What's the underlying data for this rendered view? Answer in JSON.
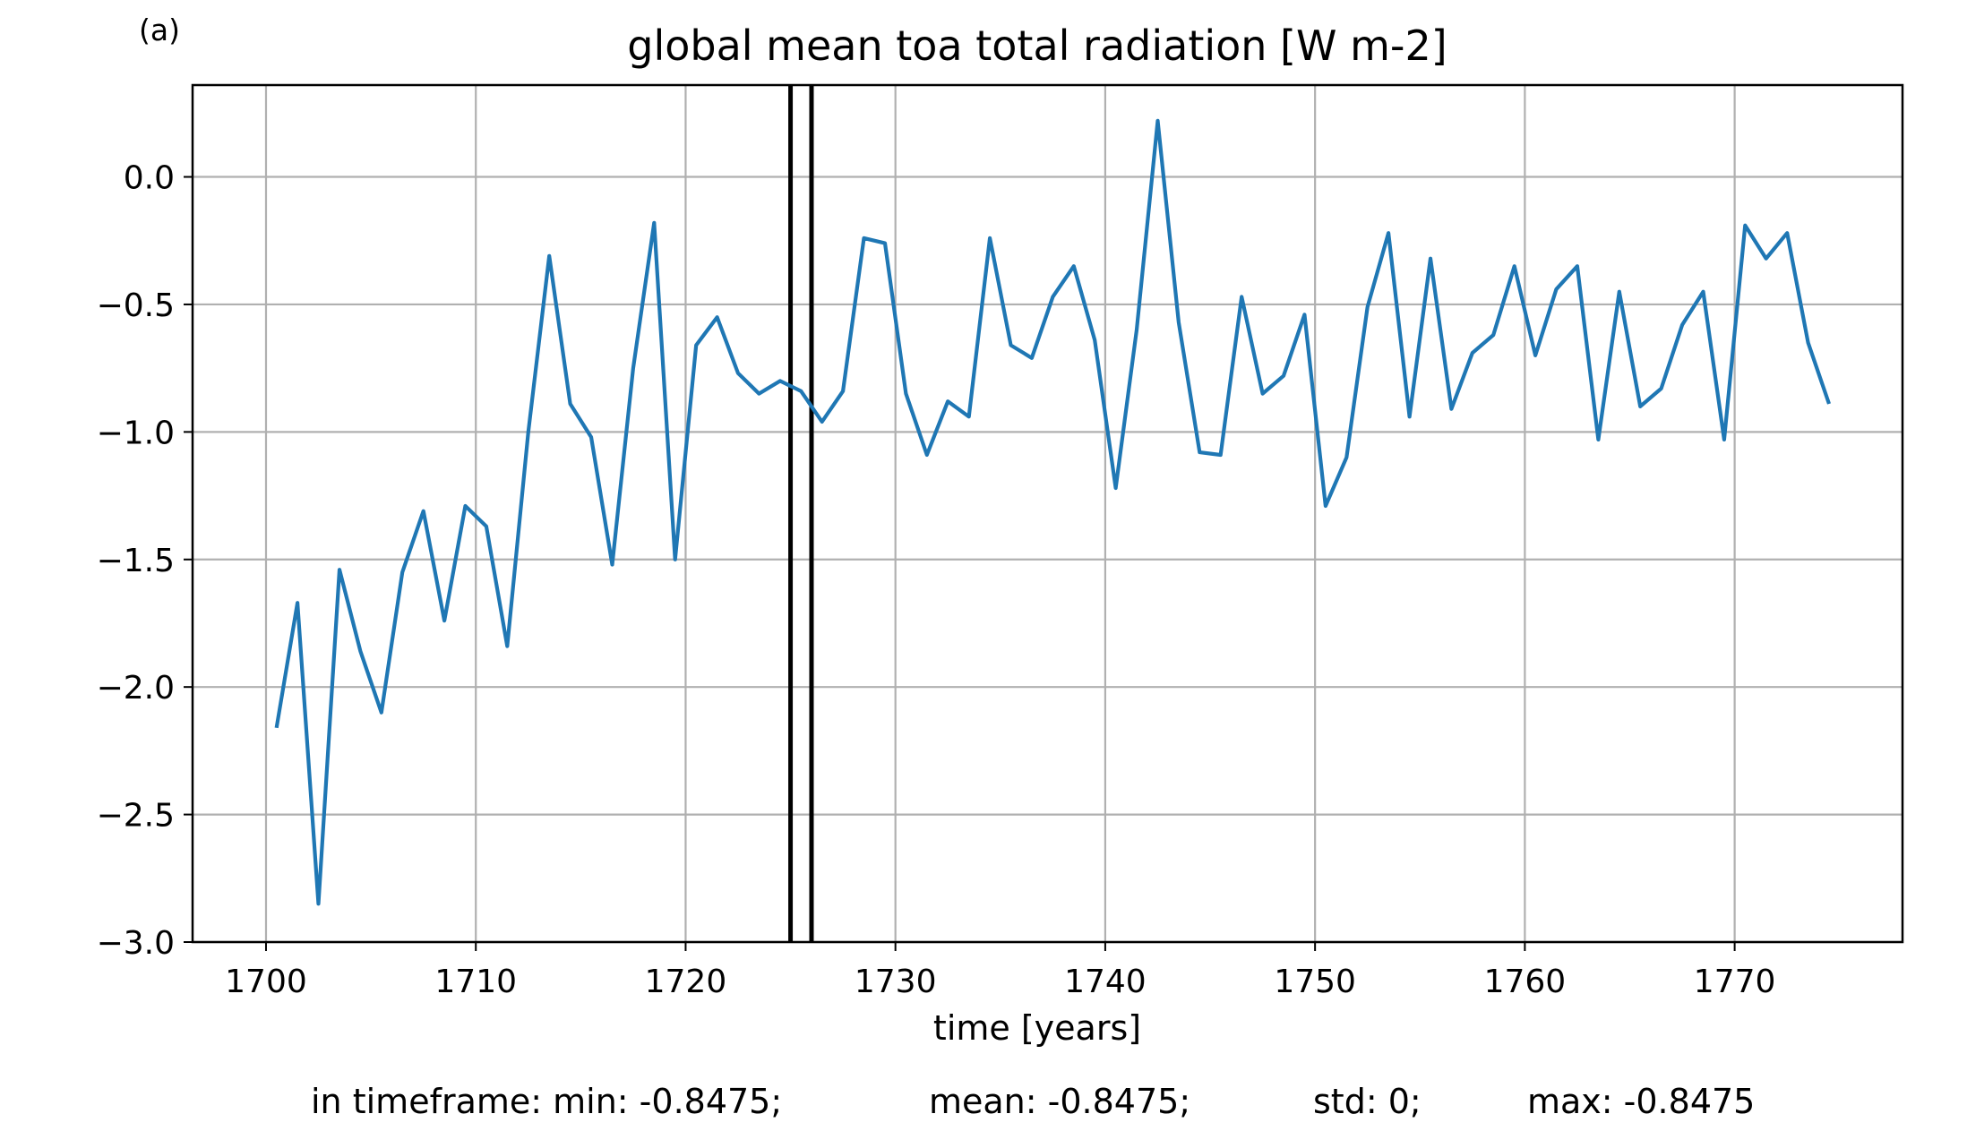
{
  "panel_label": "(a)",
  "chart_data": {
    "type": "line",
    "title": "global mean toa total radiation [W m-2]",
    "xlabel": "time [years]",
    "ylabel": "",
    "xlim": [
      1696.5,
      1778.0
    ],
    "ylim": [
      -3.0,
      0.36
    ],
    "xticks": [
      1700,
      1710,
      1720,
      1730,
      1740,
      1750,
      1760,
      1770
    ],
    "yticks": [
      -3.0,
      -2.5,
      -2.0,
      -1.5,
      -1.0,
      -0.5,
      0.0
    ],
    "ytick_labels": [
      "−3.0",
      "−2.5",
      "−2.0",
      "−1.5",
      "−1.0",
      "−0.5",
      "0.0"
    ],
    "grid": true,
    "vlines": [
      1725.0,
      1726.0
    ],
    "series_color": "#1f77b4",
    "vline_color": "#000000",
    "grid_color": "#b0b0b0",
    "series": [
      {
        "x": [
          1700.5,
          1701.5,
          1702.5,
          1703.5,
          1704.5,
          1705.5,
          1706.5,
          1707.5,
          1708.5,
          1709.5,
          1710.5,
          1711.5,
          1712.5,
          1713.5,
          1714.5,
          1715.5,
          1716.5,
          1717.5,
          1718.5,
          1719.5,
          1720.5,
          1721.5,
          1722.5,
          1723.5,
          1724.5,
          1725.5,
          1726.5,
          1727.5,
          1728.5,
          1729.5,
          1730.5,
          1731.5,
          1732.5,
          1733.5,
          1734.5,
          1735.5,
          1736.5,
          1737.5,
          1738.5,
          1739.5,
          1740.5,
          1741.5,
          1742.5,
          1743.5,
          1744.5,
          1745.5,
          1746.5,
          1747.5,
          1748.5,
          1749.5,
          1750.5,
          1751.5,
          1752.5,
          1753.5,
          1754.5,
          1755.5,
          1756.5,
          1757.5,
          1758.5,
          1759.5,
          1760.5,
          1761.5,
          1762.5,
          1763.5,
          1764.5,
          1765.5,
          1766.5,
          1767.5,
          1768.5,
          1769.5,
          1770.5,
          1771.5,
          1772.5,
          1773.5,
          1774.5
        ],
        "values": [
          -2.16,
          -1.67,
          -2.85,
          -1.54,
          -1.86,
          -2.1,
          -1.55,
          -1.31,
          -1.74,
          -1.29,
          -1.37,
          -1.84,
          -1.0,
          -0.31,
          -0.89,
          -1.02,
          -1.52,
          -0.75,
          -0.18,
          -1.5,
          -0.66,
          -0.55,
          -0.77,
          -0.85,
          -0.8,
          -0.84,
          -0.96,
          -0.84,
          -0.24,
          -0.26,
          -0.85,
          -1.09,
          -0.88,
          -0.94,
          -0.24,
          -0.66,
          -0.71,
          -0.47,
          -0.35,
          -0.64,
          -1.22,
          -0.6,
          0.22,
          -0.57,
          -1.08,
          -1.09,
          -0.47,
          -0.85,
          -0.78,
          -0.54,
          -1.29,
          -1.1,
          -0.51,
          -0.22,
          -0.94,
          -0.32,
          -0.91,
          -0.69,
          -0.62,
          -0.35,
          -0.7,
          -0.44,
          -0.35,
          -1.03,
          -0.45,
          -0.9,
          -0.83,
          -0.58,
          -0.45,
          -1.03,
          -0.19,
          -0.32,
          -0.22,
          -0.65,
          -0.89
        ]
      }
    ]
  },
  "stats": {
    "prefix": "in timeframe: min: -0.8475;",
    "mean": "mean: -0.8475;",
    "std": "std: 0;",
    "max": "max: -0.8475"
  }
}
